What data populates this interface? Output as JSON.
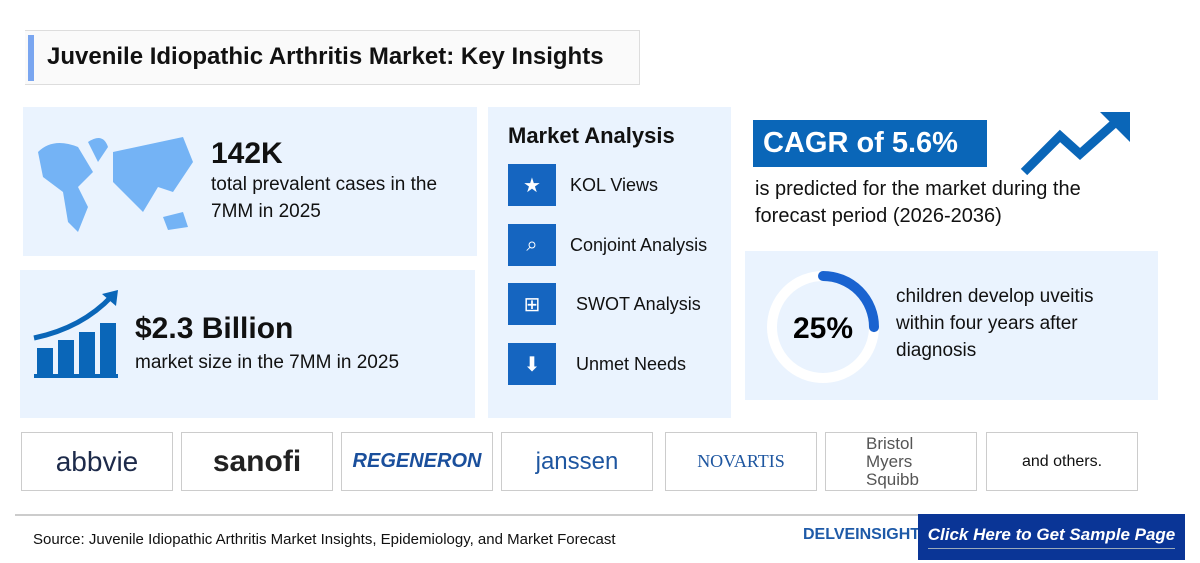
{
  "title": "Juvenile Idiopathic Arthritis Market: Key Insights",
  "prevalence": {
    "value": "142K",
    "text": "total prevalent cases in the 7MM in 2025"
  },
  "market_size": {
    "value": "$2.3 Billion",
    "text": "market size in the 7MM in 2025"
  },
  "market_analysis": {
    "heading": "Market Analysis",
    "items": [
      {
        "label": "KOL Views",
        "icon": "kol-icon"
      },
      {
        "label": "Conjoint Analysis",
        "icon": "analysis-icon"
      },
      {
        "label": "SWOT Analysis",
        "icon": "swot-icon"
      },
      {
        "label": "Unmet Needs",
        "icon": "unmet-needs-icon"
      }
    ]
  },
  "cagr": {
    "label": "CAGR of 5.6%",
    "text": "is predicted for the market during the forecast period (2026-2036)"
  },
  "uveitis": {
    "value": "25%",
    "percent": 25,
    "text": "children develop uveitis within four years after diagnosis"
  },
  "companies": [
    "abbvie",
    "sanofi",
    "REGENERON",
    "janssen",
    "NOVARTIS",
    "Bristol Myers Squibb",
    "and others."
  ],
  "footer": {
    "source": "Source: Juvenile Idiopathic Arthritis Market Insights, Epidemiology, and Market Forecast",
    "brand": "DELVEINSIGHT",
    "cta": "Click Here to Get Sample Page"
  },
  "colors": {
    "accent": "#0a66b8",
    "card": "#eaf3fe",
    "cta": "#0a3596"
  }
}
